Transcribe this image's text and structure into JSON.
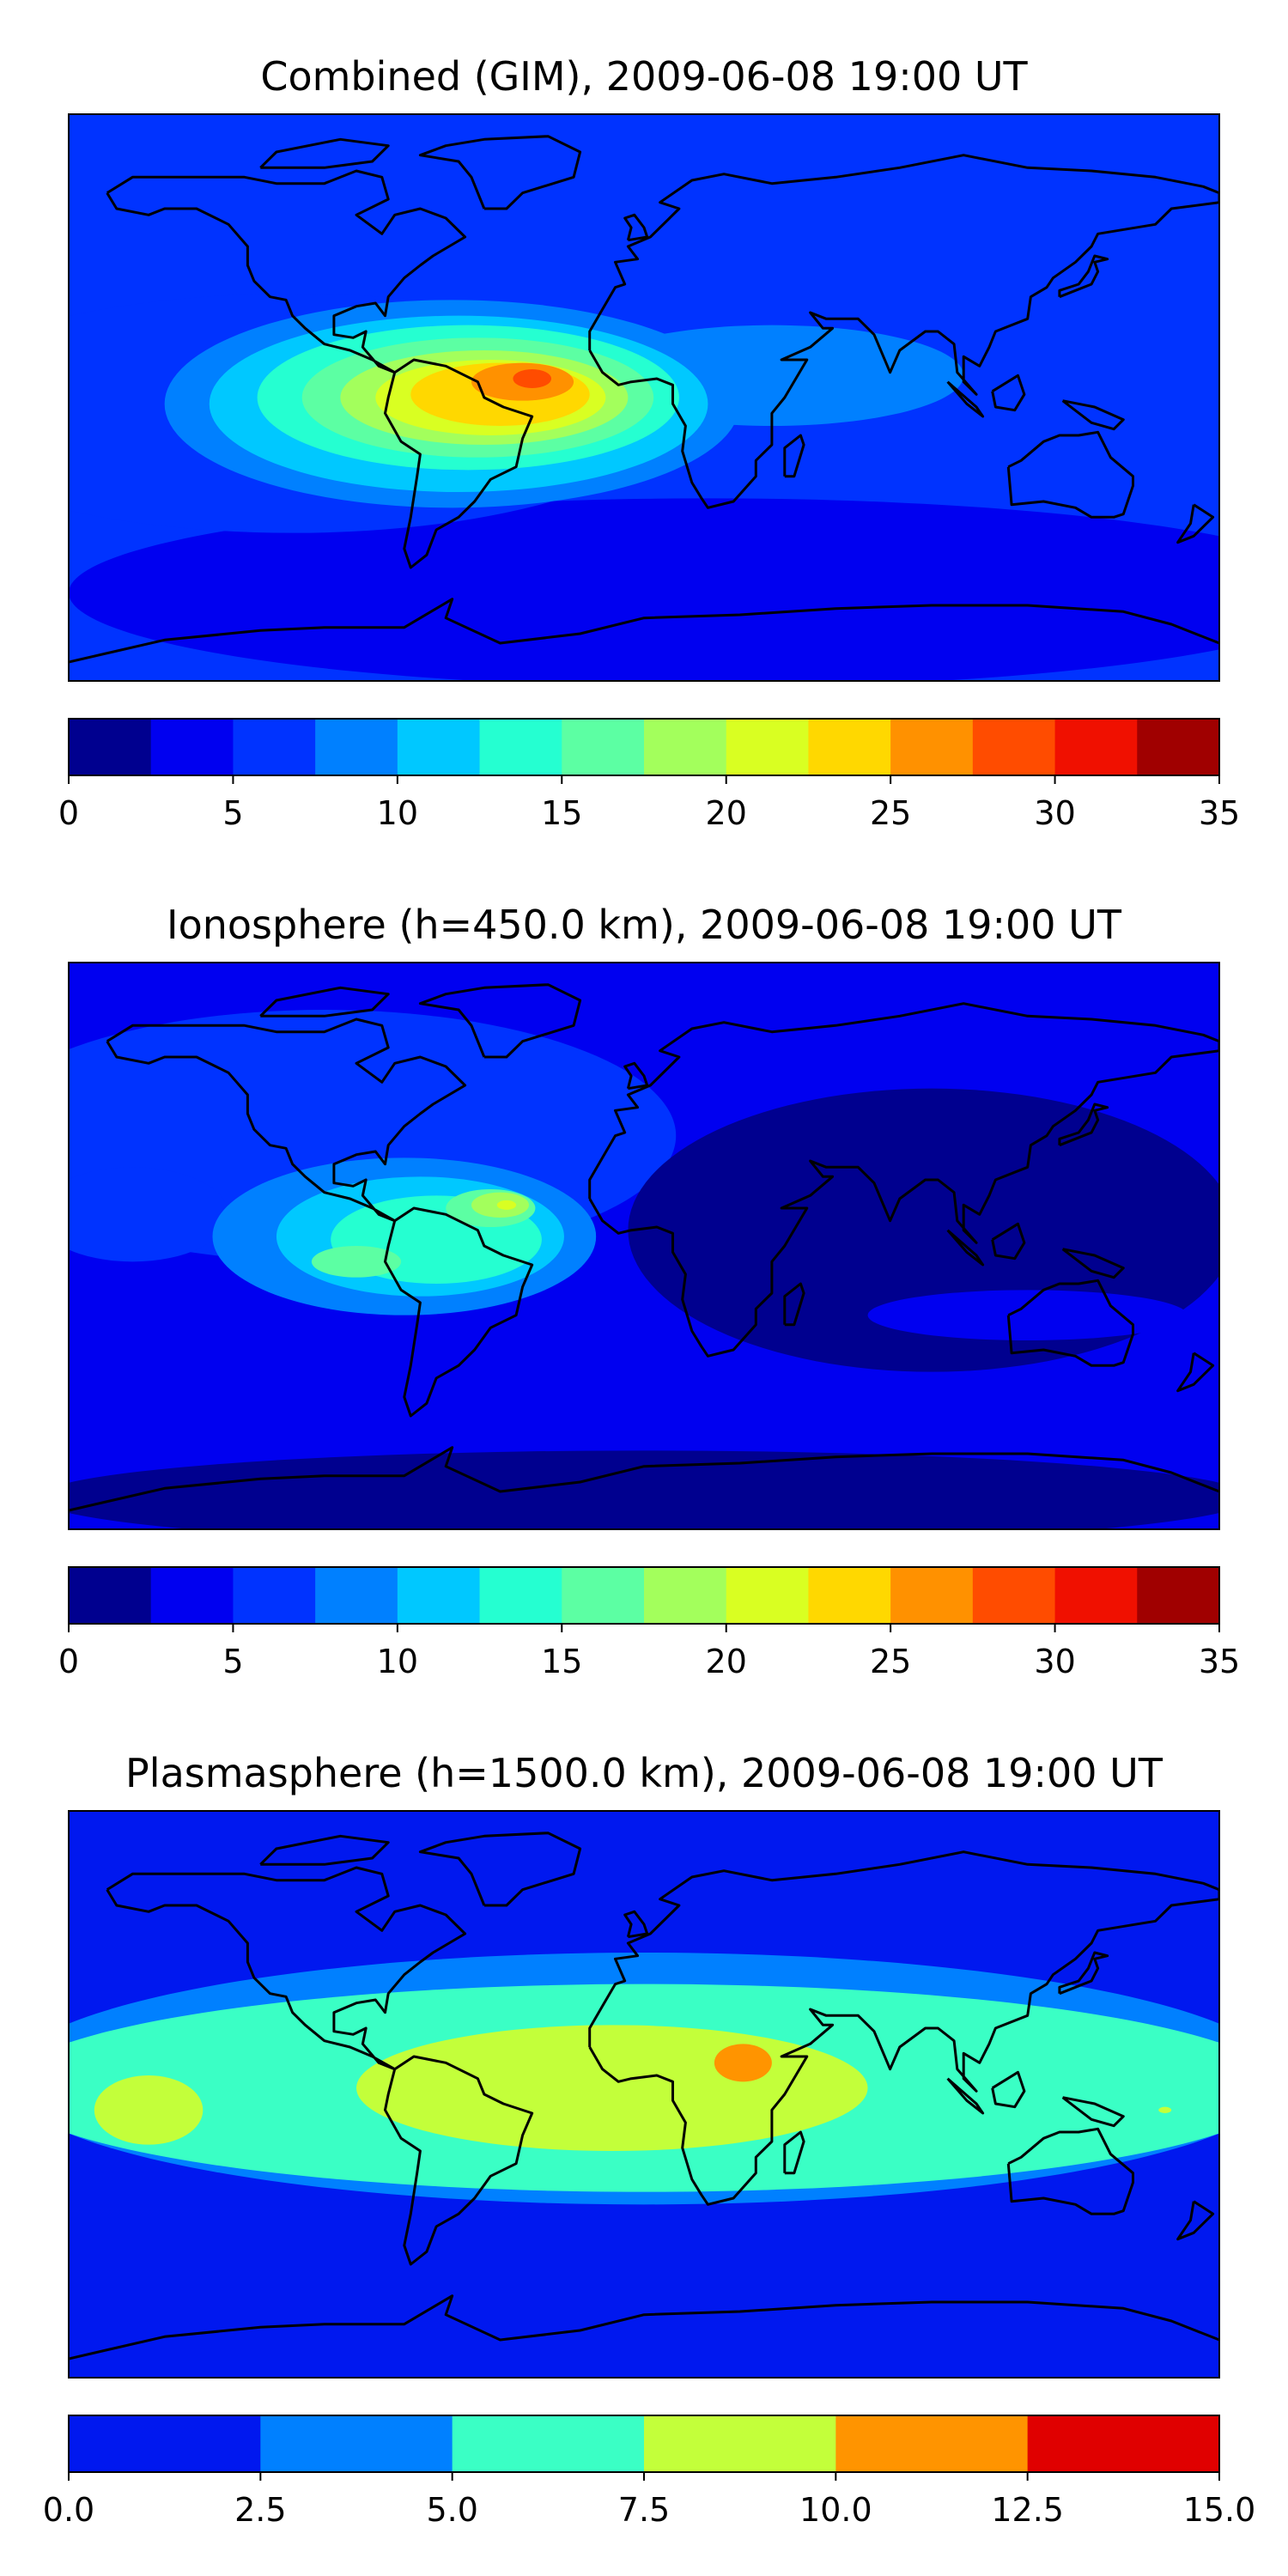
{
  "chart_data": [
    {
      "type": "filled-contour-map",
      "title": "Combined (GIM), 2009-06-08 19:00 UT",
      "colorbar": {
        "levels": [
          0,
          2.5,
          5,
          7.5,
          10,
          12.5,
          15,
          17.5,
          20,
          22.5,
          25,
          27.5,
          30,
          32.5,
          35
        ],
        "colors": [
          "#00008f",
          "#0000f0",
          "#0033ff",
          "#0080ff",
          "#00c8ff",
          "#25ffd1",
          "#5cffa3",
          "#a3ff5c",
          "#d9ff22",
          "#ffd800",
          "#ff9100",
          "#ff4c00",
          "#f01000",
          "#a00000"
        ],
        "tick_labels": [
          "0",
          "5",
          "10",
          "15",
          "20",
          "25",
          "30",
          "35"
        ]
      },
      "features": [
        {
          "name": "background",
          "level": 2,
          "lon": -180,
          "lat": 90,
          "rlon": 0,
          "rlat": 0
        },
        {
          "name": "southern-band",
          "level": 1,
          "lon": 20,
          "lat": -62,
          "rlon": 200,
          "rlat": 30
        },
        {
          "name": "pacific-east",
          "level": 2,
          "lon": -110,
          "lat": -5,
          "rlon": 120,
          "rlat": 38
        },
        {
          "name": "eia-outer",
          "level": 3,
          "lon": -60,
          "lat": -2,
          "rlon": 90,
          "rlat": 33
        },
        {
          "name": "indian-arm",
          "level": 3,
          "lon": 40,
          "lat": 7,
          "rlon": 60,
          "rlat": 16
        },
        {
          "name": "eia-l4",
          "level": 4,
          "lon": -58,
          "lat": -2,
          "rlon": 78,
          "rlat": 28
        },
        {
          "name": "eia-l5",
          "level": 5,
          "lon": -55,
          "lat": 0,
          "rlon": 66,
          "rlat": 23
        },
        {
          "name": "eia-l6",
          "level": 6,
          "lon": -52,
          "lat": 0,
          "rlon": 55,
          "rlat": 19
        },
        {
          "name": "eia-l7",
          "level": 7,
          "lon": -50,
          "lat": 0,
          "rlon": 45,
          "rlat": 15
        },
        {
          "name": "eia-l8",
          "level": 8,
          "lon": -48,
          "lat": 0,
          "rlon": 36,
          "rlat": 12
        },
        {
          "name": "eia-l9",
          "level": 9,
          "lon": -45,
          "lat": 1,
          "rlon": 28,
          "rlat": 10
        },
        {
          "name": "eia-l10",
          "level": 10,
          "lon": -38,
          "lat": 5,
          "rlon": 16,
          "rlat": 6
        },
        {
          "name": "eia-l11",
          "level": 11,
          "lon": -35,
          "lat": 6,
          "rlon": 6,
          "rlat": 3
        }
      ]
    },
    {
      "type": "filled-contour-map",
      "title": "Ionosphere  (h=450.0 km), 2009-06-08 19:00 UT",
      "colorbar": {
        "levels": [
          0,
          2.5,
          5,
          7.5,
          10,
          12.5,
          15,
          17.5,
          20,
          22.5,
          25,
          27.5,
          30,
          32.5,
          35
        ],
        "colors": [
          "#00008f",
          "#0000f0",
          "#0033ff",
          "#0080ff",
          "#00c8ff",
          "#25ffd1",
          "#5cffa3",
          "#a3ff5c",
          "#d9ff22",
          "#ffd800",
          "#ff9100",
          "#ff4c00",
          "#f01000",
          "#a00000"
        ],
        "tick_labels": [
          "0",
          "5",
          "10",
          "15",
          "20",
          "25",
          "30",
          "35"
        ]
      },
      "features": [
        {
          "name": "background",
          "level": 1,
          "lon": -180,
          "lat": 90,
          "rlon": 0,
          "rlat": 0
        },
        {
          "name": "americas-mid",
          "level": 2,
          "lon": -100,
          "lat": 35,
          "rlon": 110,
          "rlat": 40
        },
        {
          "name": "pacific-west-blob",
          "level": 2,
          "lon": -160,
          "lat": 10,
          "rlon": 30,
          "rlat": 15
        },
        {
          "name": "old-world-low",
          "level": 0,
          "lon": 90,
          "lat": 5,
          "rlon": 95,
          "rlat": 45
        },
        {
          "name": "southern-low",
          "level": 0,
          "lon": 0,
          "lat": -80,
          "rlon": 190,
          "rlat": 15
        },
        {
          "name": "australia-arm",
          "level": 1,
          "lon": 120,
          "lat": -22,
          "rlon": 50,
          "rlat": 8
        },
        {
          "name": "eia-l3",
          "level": 3,
          "lon": -75,
          "lat": 3,
          "rlon": 60,
          "rlat": 25
        },
        {
          "name": "eia-l4",
          "level": 4,
          "lon": -70,
          "lat": 3,
          "rlon": 45,
          "rlat": 19
        },
        {
          "name": "eia-l5",
          "level": 5,
          "lon": -65,
          "lat": 2,
          "rlon": 33,
          "rlat": 14
        },
        {
          "name": "eia-l6-north",
          "level": 6,
          "lon": -48,
          "lat": 12,
          "rlon": 14,
          "rlat": 6
        },
        {
          "name": "eia-l6-south",
          "level": 6,
          "lon": -90,
          "lat": -5,
          "rlon": 14,
          "rlat": 5
        },
        {
          "name": "eia-l7-north",
          "level": 7,
          "lon": -45,
          "lat": 13,
          "rlon": 9,
          "rlat": 4
        },
        {
          "name": "eia-l8-north",
          "level": 8,
          "lon": -43,
          "lat": 13,
          "rlon": 3,
          "rlat": 1.5
        }
      ]
    },
    {
      "type": "filled-contour-map",
      "title": "Plasmasphere (h=1500.0 km), 2009-06-08 19:00 UT",
      "colorbar": {
        "levels": [
          0,
          2.5,
          5,
          7.5,
          10,
          12.5,
          15
        ],
        "colors": [
          "#0018ef",
          "#0080ff",
          "#3affc5",
          "#c3ff3a",
          "#ff9400",
          "#e00000"
        ],
        "tick_labels": [
          "0.0",
          "2.5",
          "5.0",
          "7.5",
          "10.0",
          "12.5",
          "15.0"
        ]
      },
      "features": [
        {
          "name": "background",
          "level": 0,
          "lon": -180,
          "lat": 90,
          "rlon": 0,
          "rlat": 0
        },
        {
          "name": "band-l1",
          "level": 1,
          "lon": 0,
          "lat": 5,
          "rlon": 200,
          "rlat": 40
        },
        {
          "name": "band-l2",
          "level": 2,
          "lon": 0,
          "lat": 2,
          "rlon": 200,
          "rlat": 33
        },
        {
          "name": "central-l3",
          "level": 3,
          "lon": -10,
          "lat": 2,
          "rlon": 80,
          "rlat": 20
        },
        {
          "name": "pacific-l3",
          "level": 3,
          "lon": -155,
          "lat": -5,
          "rlon": 17,
          "rlat": 11
        },
        {
          "name": "asia-fleck-l3",
          "level": 3,
          "lon": 163,
          "lat": -5,
          "rlon": 2,
          "rlat": 1
        },
        {
          "name": "africa-l4",
          "level": 4,
          "lon": 31,
          "lat": 10,
          "rlon": 9,
          "rlat": 6
        }
      ]
    }
  ]
}
